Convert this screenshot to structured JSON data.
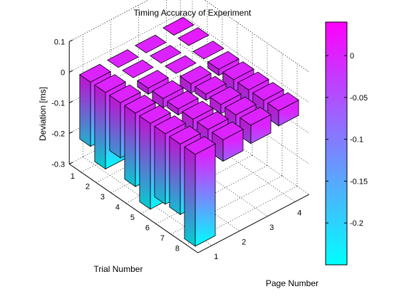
{
  "chart_data": {
    "type": "bar3d",
    "title": "Timing Accuracy of Experiment",
    "xlabel": "Page Number",
    "ylabel": "Trial Number",
    "zlabel": "Deviation [ms]",
    "x_categories": [
      "1",
      "2",
      "3",
      "4"
    ],
    "y_categories": [
      "1",
      "2",
      "3",
      "4",
      "5",
      "6",
      "7",
      "8"
    ],
    "z_ticks": [
      "0.1",
      "0",
      "-0.1",
      "-0.2",
      "-0.3"
    ],
    "zlim": [
      -0.3,
      0.1
    ],
    "colormap": {
      "low": "#00FFFF",
      "high": "#FF00FF"
    },
    "colorbar": {
      "ticks": [
        "0",
        "-0.05",
        "-0.1",
        "-0.15",
        "-0.2"
      ],
      "range": [
        -0.25,
        0.04
      ]
    },
    "grid": true,
    "values": [
      [
        -0.21,
        0.0,
        0.0,
        0.01
      ],
      [
        -0.25,
        -0.01,
        0.0,
        0.01
      ],
      [
        -0.18,
        -0.02,
        -0.01,
        0.0
      ],
      [
        -0.24,
        -0.03,
        -0.03,
        -0.02
      ],
      [
        -0.28,
        -0.02,
        -0.02,
        -0.04
      ],
      [
        -0.23,
        -0.04,
        -0.03,
        -0.05
      ],
      [
        -0.23,
        -0.06,
        -0.05,
        -0.04
      ],
      [
        -0.3,
        -0.07,
        -0.06,
        -0.05
      ]
    ]
  }
}
